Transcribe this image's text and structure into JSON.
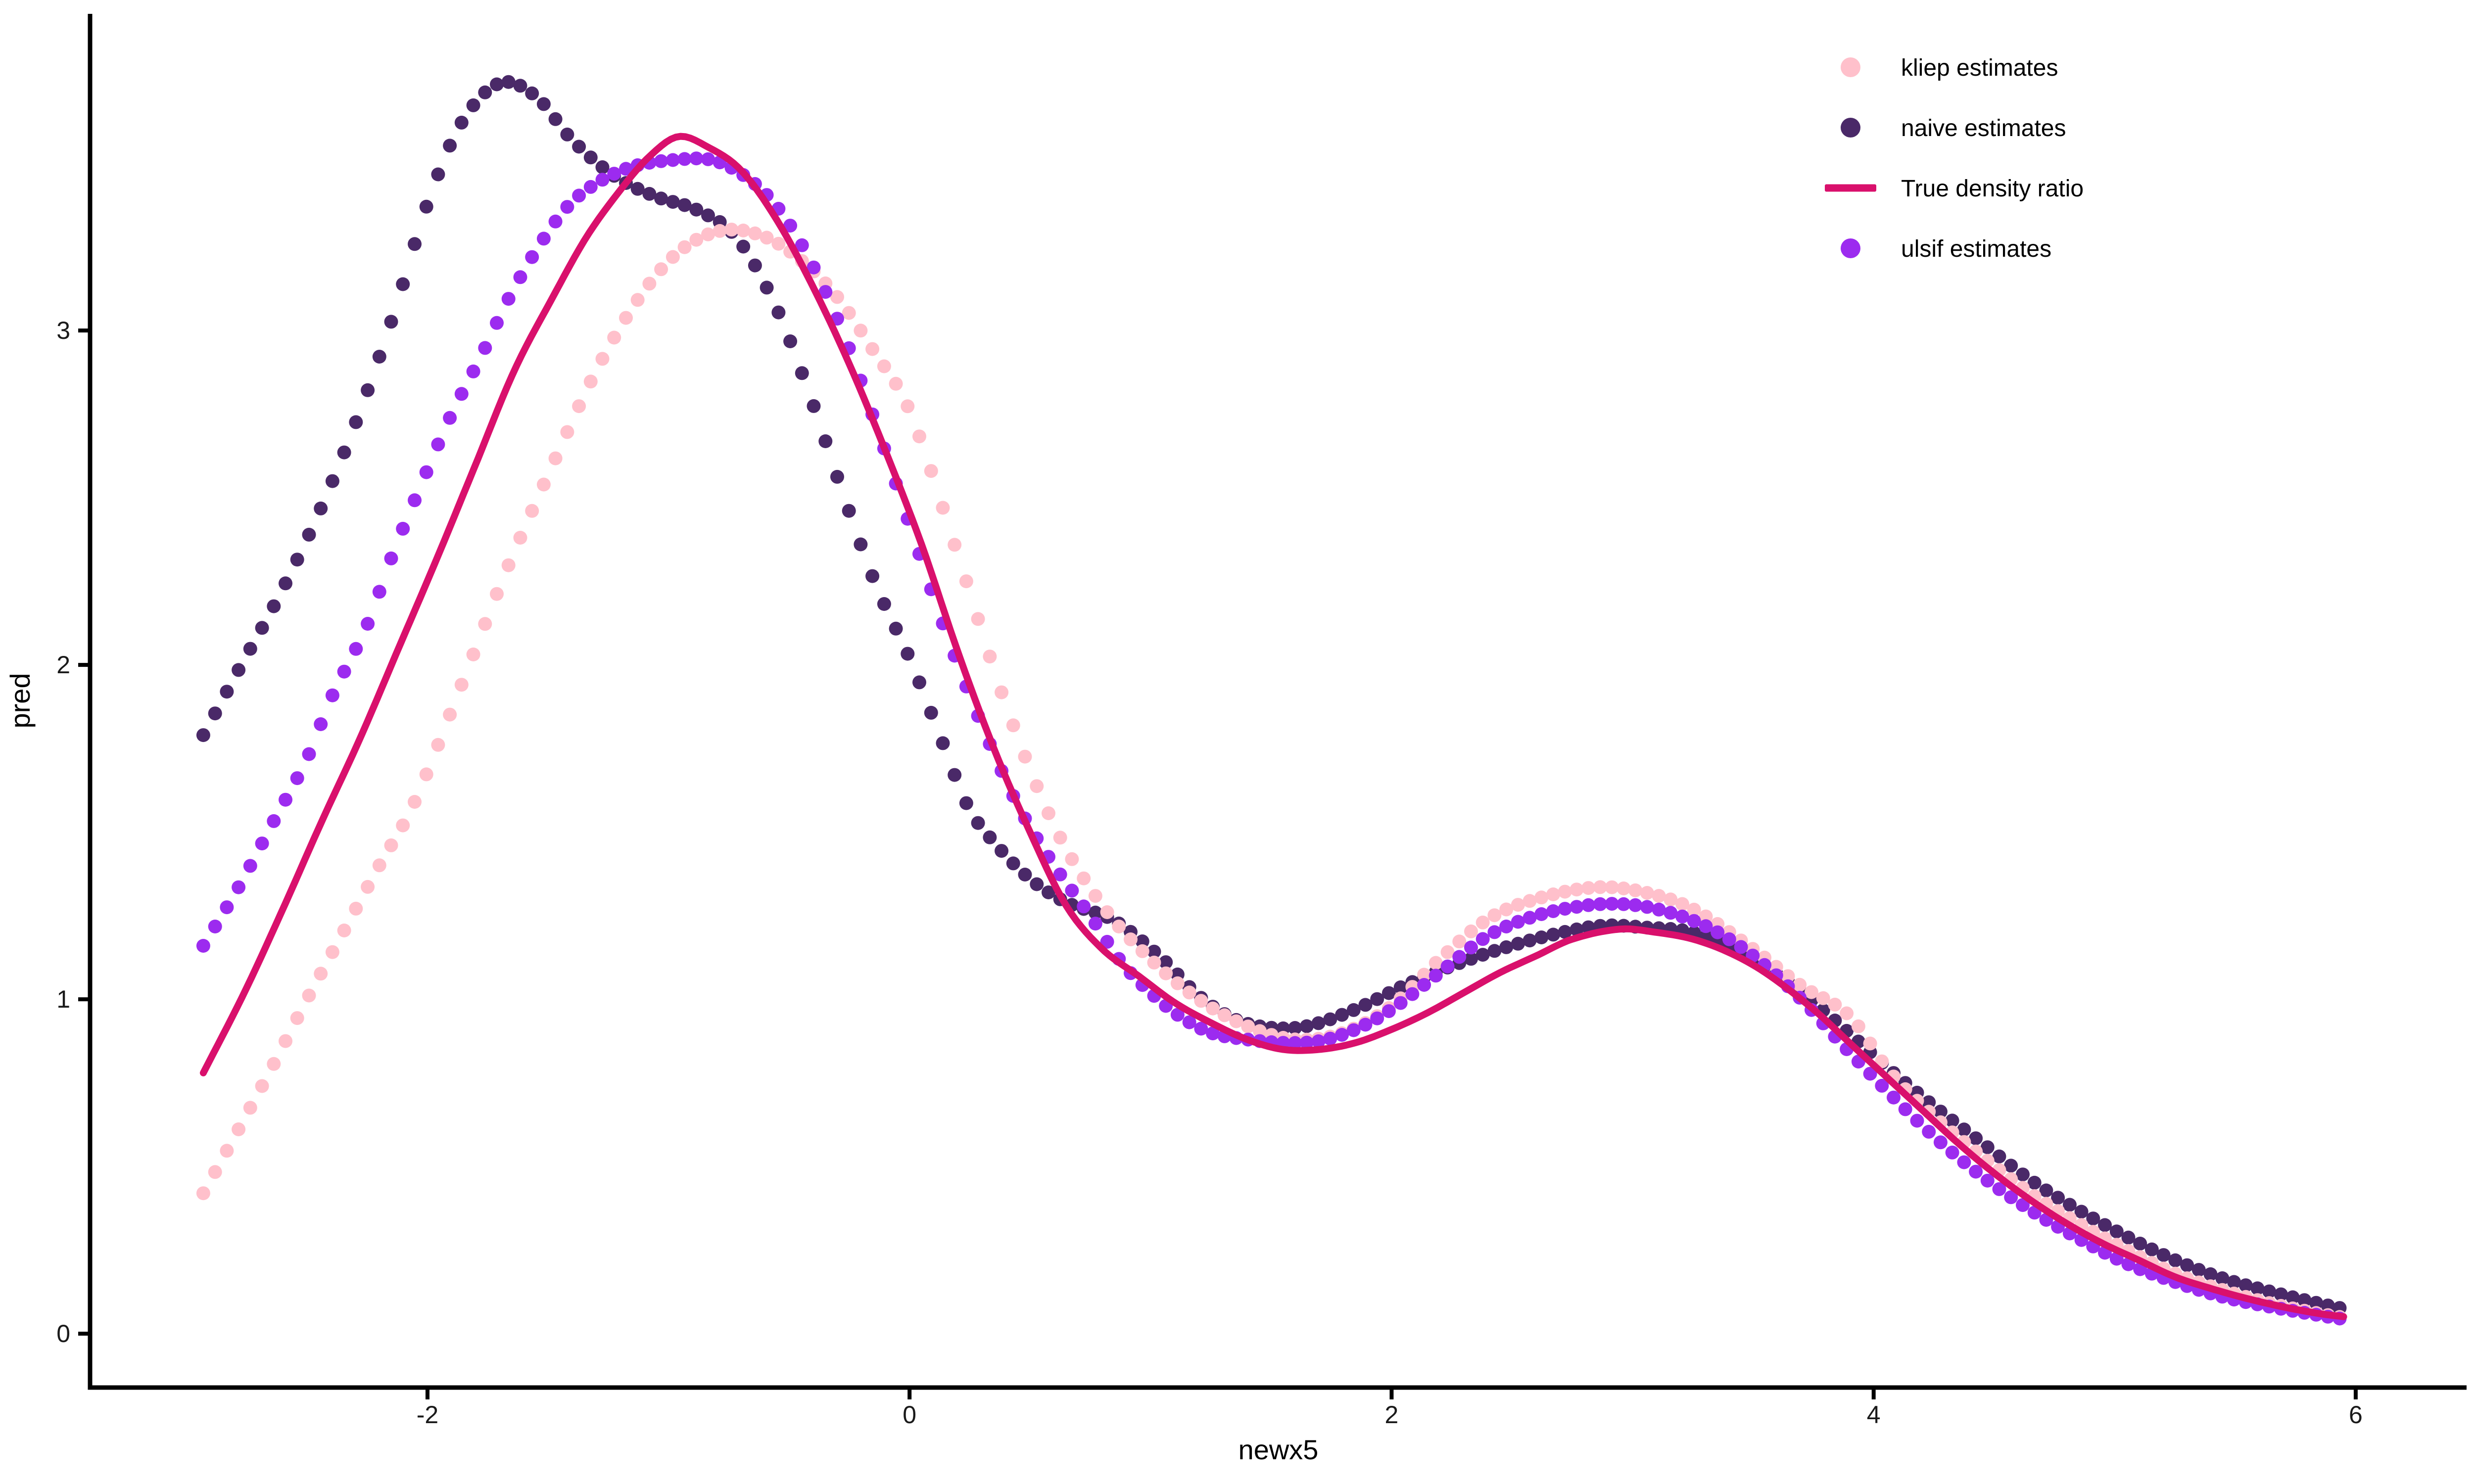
{
  "figure": {
    "background": "#ffffff",
    "axis_color": "#000000",
    "tick_label_color": "#1a1a1a",
    "axis_title_color": "#000000",
    "legend_text_color": "#000000"
  },
  "chart_data": {
    "type": "scatter",
    "title": "",
    "xlabel": "newx5",
    "ylabel": "pred",
    "xlim": [
      -3.4,
      6.46
    ],
    "ylim": [
      -0.161,
      3.947
    ],
    "grid": false,
    "legend_position": "top-right",
    "x_ticks": {
      "values": [
        -2,
        0,
        2,
        4,
        6
      ],
      "labels": [
        "-2",
        "0",
        "2",
        "4",
        "6"
      ]
    },
    "y_ticks": {
      "values": [
        0,
        1,
        2,
        3
      ],
      "labels": [
        "0",
        "1",
        "2",
        "3"
      ]
    },
    "point_step": 0.0487,
    "point_x_start": -2.93,
    "point_x_end": 5.98,
    "draw_order": [
      1,
      0,
      3,
      2
    ],
    "series": [
      {
        "name": "kliep estimates",
        "marker": "point",
        "color": "#ffc0cb",
        "points": [
          [
            -2.93,
            0.42
          ],
          [
            -2.8,
            0.59
          ],
          [
            -2.65,
            0.79
          ],
          [
            -2.5,
            1.0
          ],
          [
            -2.35,
            1.2
          ],
          [
            -2.2,
            1.4
          ],
          [
            -2.06,
            1.58
          ],
          [
            -1.87,
            1.92
          ],
          [
            -1.68,
            2.27
          ],
          [
            -1.48,
            2.6
          ],
          [
            -1.3,
            2.88
          ],
          [
            -1.12,
            3.1
          ],
          [
            -0.95,
            3.24
          ],
          [
            -0.77,
            3.3
          ],
          [
            -0.6,
            3.28
          ],
          [
            -0.45,
            3.21
          ],
          [
            -0.3,
            3.1
          ],
          [
            -0.15,
            2.94
          ],
          [
            0.0,
            2.76
          ],
          [
            0.2,
            2.33
          ],
          [
            0.4,
            1.88
          ],
          [
            0.6,
            1.52
          ],
          [
            0.8,
            1.28
          ],
          [
            1.0,
            1.12
          ],
          [
            1.2,
            1.0
          ],
          [
            1.4,
            0.92
          ],
          [
            1.6,
            0.88
          ],
          [
            1.8,
            0.9
          ],
          [
            2.0,
            0.98
          ],
          [
            2.2,
            1.12
          ],
          [
            2.4,
            1.24
          ],
          [
            2.6,
            1.3
          ],
          [
            2.85,
            1.335
          ],
          [
            3.05,
            1.32
          ],
          [
            3.25,
            1.27
          ],
          [
            3.5,
            1.15
          ],
          [
            3.7,
            1.04
          ],
          [
            3.9,
            0.95
          ],
          [
            4.07,
            0.78
          ],
          [
            4.25,
            0.65
          ],
          [
            4.45,
            0.53
          ],
          [
            4.65,
            0.42
          ],
          [
            4.85,
            0.33
          ],
          [
            5.05,
            0.25
          ],
          [
            5.25,
            0.18
          ],
          [
            5.45,
            0.13
          ],
          [
            5.65,
            0.09
          ],
          [
            5.85,
            0.06
          ],
          [
            5.98,
            0.045
          ]
        ]
      },
      {
        "name": "naive estimates",
        "marker": "point",
        "color": "#4a2968",
        "points": [
          [
            -2.93,
            1.79
          ],
          [
            -2.78,
            1.99
          ],
          [
            -2.62,
            2.2
          ],
          [
            -2.46,
            2.44
          ],
          [
            -2.3,
            2.72
          ],
          [
            -2.14,
            3.05
          ],
          [
            -2.0,
            3.38
          ],
          [
            -1.86,
            3.62
          ],
          [
            -1.7,
            3.74
          ],
          [
            -1.55,
            3.7
          ],
          [
            -1.4,
            3.57
          ],
          [
            -1.22,
            3.46
          ],
          [
            -1.05,
            3.4
          ],
          [
            -0.88,
            3.36
          ],
          [
            -0.72,
            3.28
          ],
          [
            -0.56,
            3.08
          ],
          [
            -0.42,
            2.82
          ],
          [
            -0.28,
            2.52
          ],
          [
            -0.14,
            2.24
          ],
          [
            0.0,
            2.02
          ],
          [
            0.12,
            1.8
          ],
          [
            0.24,
            1.58
          ],
          [
            0.35,
            1.47
          ],
          [
            0.5,
            1.36
          ],
          [
            0.65,
            1.29
          ],
          [
            0.85,
            1.235
          ],
          [
            1.05,
            1.12
          ],
          [
            1.2,
            1.01
          ],
          [
            1.35,
            0.94
          ],
          [
            1.5,
            0.915
          ],
          [
            1.65,
            0.92
          ],
          [
            1.85,
            0.97
          ],
          [
            2.05,
            1.04
          ],
          [
            2.25,
            1.1
          ],
          [
            2.45,
            1.15
          ],
          [
            2.65,
            1.19
          ],
          [
            2.87,
            1.22
          ],
          [
            3.05,
            1.215
          ],
          [
            3.25,
            1.2
          ],
          [
            3.45,
            1.14
          ],
          [
            3.65,
            1.05
          ],
          [
            3.85,
            0.93
          ],
          [
            4.05,
            0.8
          ],
          [
            4.25,
            0.68
          ],
          [
            4.45,
            0.57
          ],
          [
            4.65,
            0.46
          ],
          [
            4.85,
            0.37
          ],
          [
            5.05,
            0.29
          ],
          [
            5.25,
            0.22
          ],
          [
            5.45,
            0.165
          ],
          [
            5.65,
            0.125
          ],
          [
            5.85,
            0.09
          ],
          [
            5.98,
            0.07
          ]
        ]
      },
      {
        "name": "True density ratio",
        "marker": "line",
        "color": "#d9106c",
        "points": [
          [
            -2.93,
            0.78
          ],
          [
            -2.76,
            1.02
          ],
          [
            -2.6,
            1.27
          ],
          [
            -2.44,
            1.53
          ],
          [
            -2.28,
            1.78
          ],
          [
            -2.12,
            2.05
          ],
          [
            -1.96,
            2.32
          ],
          [
            -1.8,
            2.6
          ],
          [
            -1.64,
            2.88
          ],
          [
            -1.48,
            3.1
          ],
          [
            -1.34,
            3.28
          ],
          [
            -1.2,
            3.42
          ],
          [
            -1.08,
            3.52
          ],
          [
            -0.96,
            3.58
          ],
          [
            -0.84,
            3.55
          ],
          [
            -0.7,
            3.48
          ],
          [
            -0.55,
            3.33
          ],
          [
            -0.4,
            3.13
          ],
          [
            -0.25,
            2.9
          ],
          [
            -0.1,
            2.64
          ],
          [
            0.05,
            2.36
          ],
          [
            0.2,
            2.04
          ],
          [
            0.35,
            1.75
          ],
          [
            0.5,
            1.5
          ],
          [
            0.65,
            1.28
          ],
          [
            0.8,
            1.15
          ],
          [
            0.95,
            1.07
          ],
          [
            1.1,
            0.99
          ],
          [
            1.25,
            0.93
          ],
          [
            1.4,
            0.88
          ],
          [
            1.55,
            0.85
          ],
          [
            1.7,
            0.85
          ],
          [
            1.85,
            0.87
          ],
          [
            2.0,
            0.91
          ],
          [
            2.15,
            0.96
          ],
          [
            2.3,
            1.02
          ],
          [
            2.45,
            1.08
          ],
          [
            2.6,
            1.13
          ],
          [
            2.75,
            1.18
          ],
          [
            2.95,
            1.21
          ],
          [
            3.1,
            1.2
          ],
          [
            3.25,
            1.18
          ],
          [
            3.4,
            1.14
          ],
          [
            3.55,
            1.08
          ],
          [
            3.75,
            0.97
          ],
          [
            3.9,
            0.87
          ],
          [
            4.05,
            0.77
          ],
          [
            4.2,
            0.67
          ],
          [
            4.35,
            0.57
          ],
          [
            4.5,
            0.48
          ],
          [
            4.65,
            0.4
          ],
          [
            4.8,
            0.33
          ],
          [
            4.95,
            0.27
          ],
          [
            5.1,
            0.22
          ],
          [
            5.25,
            0.17
          ],
          [
            5.4,
            0.135
          ],
          [
            5.55,
            0.105
          ],
          [
            5.7,
            0.08
          ],
          [
            5.85,
            0.06
          ],
          [
            5.96,
            0.05
          ]
        ]
      },
      {
        "name": "ulsif estimates",
        "marker": "point",
        "color": "#9c2bef",
        "points": [
          [
            -2.93,
            1.16
          ],
          [
            -2.78,
            1.34
          ],
          [
            -2.64,
            1.53
          ],
          [
            -2.5,
            1.72
          ],
          [
            -2.4,
            1.9
          ],
          [
            -2.25,
            2.12
          ],
          [
            -2.15,
            2.32
          ],
          [
            -2.02,
            2.55
          ],
          [
            -1.9,
            2.75
          ],
          [
            -1.78,
            2.92
          ],
          [
            -1.66,
            3.1
          ],
          [
            -1.54,
            3.25
          ],
          [
            -1.42,
            3.37
          ],
          [
            -1.3,
            3.44
          ],
          [
            -1.15,
            3.49
          ],
          [
            -0.98,
            3.51
          ],
          [
            -0.82,
            3.51
          ],
          [
            -0.68,
            3.46
          ],
          [
            -0.55,
            3.37
          ],
          [
            -0.42,
            3.22
          ],
          [
            -0.28,
            3.0
          ],
          [
            -0.14,
            2.72
          ],
          [
            0.0,
            2.42
          ],
          [
            0.15,
            2.1
          ],
          [
            0.3,
            1.82
          ],
          [
            0.45,
            1.58
          ],
          [
            0.6,
            1.4
          ],
          [
            0.74,
            1.26
          ],
          [
            0.88,
            1.11
          ],
          [
            1.0,
            1.02
          ],
          [
            1.12,
            0.95
          ],
          [
            1.25,
            0.9
          ],
          [
            1.4,
            0.88
          ],
          [
            1.55,
            0.87
          ],
          [
            1.7,
            0.875
          ],
          [
            1.85,
            0.91
          ],
          [
            2.0,
            0.97
          ],
          [
            2.2,
            1.08
          ],
          [
            2.4,
            1.19
          ],
          [
            2.6,
            1.25
          ],
          [
            2.8,
            1.28
          ],
          [
            2.95,
            1.285
          ],
          [
            3.1,
            1.27
          ],
          [
            3.3,
            1.22
          ],
          [
            3.5,
            1.13
          ],
          [
            3.7,
            1.0
          ],
          [
            3.85,
            0.88
          ],
          [
            4.05,
            0.73
          ],
          [
            4.25,
            0.59
          ],
          [
            4.45,
            0.47
          ],
          [
            4.65,
            0.37
          ],
          [
            4.85,
            0.285
          ],
          [
            5.05,
            0.21
          ],
          [
            5.25,
            0.155
          ],
          [
            5.45,
            0.11
          ],
          [
            5.65,
            0.08
          ],
          [
            5.85,
            0.055
          ],
          [
            5.98,
            0.04
          ]
        ]
      }
    ],
    "legend_entries": [
      "kliep estimates",
      "naive estimates",
      "True density ratio",
      "ulsif estimates"
    ]
  }
}
